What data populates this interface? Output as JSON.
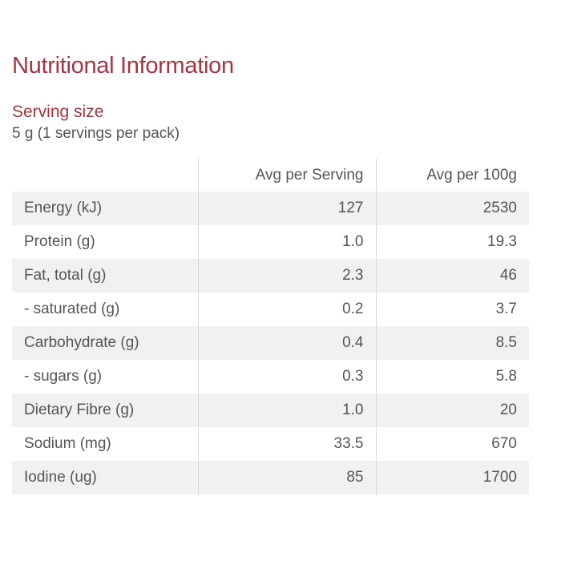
{
  "title": "Nutritional Information",
  "serving": {
    "heading": "Serving size",
    "text": "5 g (1 servings per pack)"
  },
  "table": {
    "headers": [
      "",
      "Avg per Serving",
      "Avg per 100g"
    ],
    "rows": [
      {
        "name": "Energy (kJ)",
        "per_serving": "127",
        "per_100g": "2530"
      },
      {
        "name": "Protein (g)",
        "per_serving": "1.0",
        "per_100g": "19.3"
      },
      {
        "name": "Fat, total (g)",
        "per_serving": "2.3",
        "per_100g": "46"
      },
      {
        "name": "- saturated (g)",
        "per_serving": "0.2",
        "per_100g": "3.7"
      },
      {
        "name": "Carbohydrate (g)",
        "per_serving": "0.4",
        "per_100g": "8.5"
      },
      {
        "name": "- sugars (g)",
        "per_serving": "0.3",
        "per_100g": "5.8"
      },
      {
        "name": "Dietary Fibre (g)",
        "per_serving": "1.0",
        "per_100g": "20"
      },
      {
        "name": "Sodium (mg)",
        "per_serving": "33.5",
        "per_100g": "670"
      },
      {
        "name": "Iodine (ug)",
        "per_serving": "85",
        "per_100g": "1700"
      }
    ]
  },
  "colors": {
    "heading": "#a8343f",
    "text": "#555555",
    "row_stripe": "#f1f1f1",
    "divider": "#d9d9d9"
  }
}
